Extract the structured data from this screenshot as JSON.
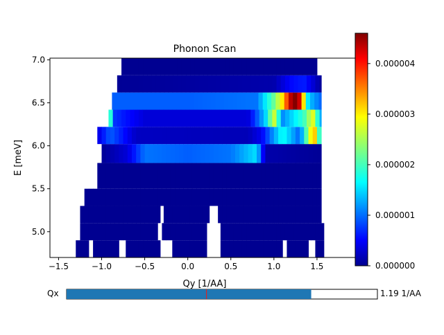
{
  "chart_data": {
    "type": "heatmap",
    "title": "Phonon Scan",
    "xlabel": "Qy [1/AA]",
    "ylabel": "E [meV]",
    "xlim": [
      -1.6,
      2.0
    ],
    "ylim": [
      4.7,
      7.02
    ],
    "x_ticks": [
      "−1.5",
      "−1.0",
      "−0.5",
      "0.0",
      "0.5",
      "1.0",
      "1.5"
    ],
    "y_ticks": [
      "5.0",
      "5.5",
      "6.0",
      "6.5",
      "7.0"
    ],
    "colormap": "jet",
    "color_range": [
      0,
      4.6e-06
    ],
    "colorbar_ticks": [
      "0.000000",
      "0.000001",
      "0.000002",
      "0.000003",
      "0.000004"
    ],
    "energy_rows": [
      {
        "e": [
          4.7,
          4.9
        ],
        "segments": [
          [
            -1.3,
            -1.15
          ],
          [
            -1.1,
            -0.8
          ],
          [
            -0.72,
            -0.32
          ],
          [
            -0.18,
            0.22
          ],
          [
            0.38,
            1.1
          ],
          [
            1.15,
            1.4
          ],
          [
            1.48,
            1.58
          ]
        ]
      },
      {
        "e": [
          4.9,
          5.1
        ],
        "segments": [
          [
            -1.25,
            -0.35
          ],
          [
            -0.3,
            0.22
          ],
          [
            0.38,
            1.58
          ]
        ]
      },
      {
        "e": [
          5.1,
          5.3
        ],
        "segments": [
          [
            -1.25,
            -0.32
          ],
          [
            -0.28,
            0.25
          ],
          [
            0.35,
            1.55
          ]
        ]
      },
      {
        "e": [
          5.3,
          5.5
        ],
        "segments": [
          [
            -1.2,
            1.55
          ]
        ]
      },
      {
        "e": [
          5.5,
          5.8
        ],
        "segments": [
          [
            -1.05,
            1.55
          ]
        ]
      },
      {
        "e": [
          5.8,
          6.02
        ],
        "segments": [
          [
            -1.0,
            1.55
          ]
        ],
        "intensity": [
          [
            -1.0,
            0.1
          ],
          [
            -0.7,
            0.4
          ],
          [
            -0.5,
            1.1
          ],
          [
            0.0,
            1.0
          ],
          [
            0.5,
            1.1
          ],
          [
            0.8,
            1.6
          ],
          [
            0.9,
            0.2
          ],
          [
            1.55,
            0.1
          ]
        ]
      },
      {
        "e": [
          6.02,
          6.22
        ],
        "segments": [
          [
            -1.05,
            1.55
          ]
        ],
        "intensity": [
          [
            -1.05,
            0.4
          ],
          [
            -0.9,
            1.0
          ],
          [
            -0.6,
            0.3
          ],
          [
            0.7,
            0.25
          ],
          [
            0.85,
            0.5
          ],
          [
            1.1,
            1.8
          ],
          [
            1.3,
            1.0
          ],
          [
            1.45,
            3.2
          ],
          [
            1.5,
            3.0
          ],
          [
            1.55,
            1.0
          ]
        ]
      },
      {
        "e": [
          6.22,
          6.42
        ],
        "segments": [
          [
            -0.92,
            1.55
          ]
        ],
        "intensity": [
          [
            -0.92,
            2.5
          ],
          [
            -0.85,
            0.8
          ],
          [
            -0.5,
            0.4
          ],
          [
            0.7,
            0.4
          ],
          [
            0.9,
            1.5
          ],
          [
            1.0,
            2.7
          ],
          [
            1.1,
            1.2
          ],
          [
            1.35,
            2.0
          ],
          [
            1.45,
            2.8
          ],
          [
            1.55,
            1.2
          ]
        ]
      },
      {
        "e": [
          6.42,
          6.62
        ],
        "segments": [
          [
            -0.88,
            1.55
          ]
        ],
        "intensity": [
          [
            -0.88,
            1.0
          ],
          [
            0.0,
            1.0
          ],
          [
            0.8,
            1.1
          ],
          [
            1.0,
            2.2
          ],
          [
            1.1,
            3.0
          ],
          [
            1.2,
            4.4
          ],
          [
            1.25,
            4.6
          ],
          [
            1.3,
            4.2
          ],
          [
            1.4,
            1.5
          ],
          [
            1.55,
            1.0
          ]
        ]
      },
      {
        "e": [
          6.62,
          6.82
        ],
        "segments": [
          [
            -0.82,
            1.55
          ]
        ],
        "intensity": [
          [
            -0.82,
            0.1
          ],
          [
            1.0,
            0.2
          ],
          [
            1.2,
            0.6
          ],
          [
            1.35,
            0.7
          ],
          [
            1.55,
            0.1
          ]
        ]
      },
      {
        "e": [
          6.82,
          7.02
        ],
        "segments": [
          [
            -0.77,
            1.5
          ]
        ]
      }
    ]
  },
  "slider": {
    "label": "Qx",
    "value_text": "1.19 1/AA",
    "fill_fraction": 0.787,
    "marker_fraction": 0.45,
    "fill_color": "#1f77b4",
    "marker_color": "#d62728"
  }
}
